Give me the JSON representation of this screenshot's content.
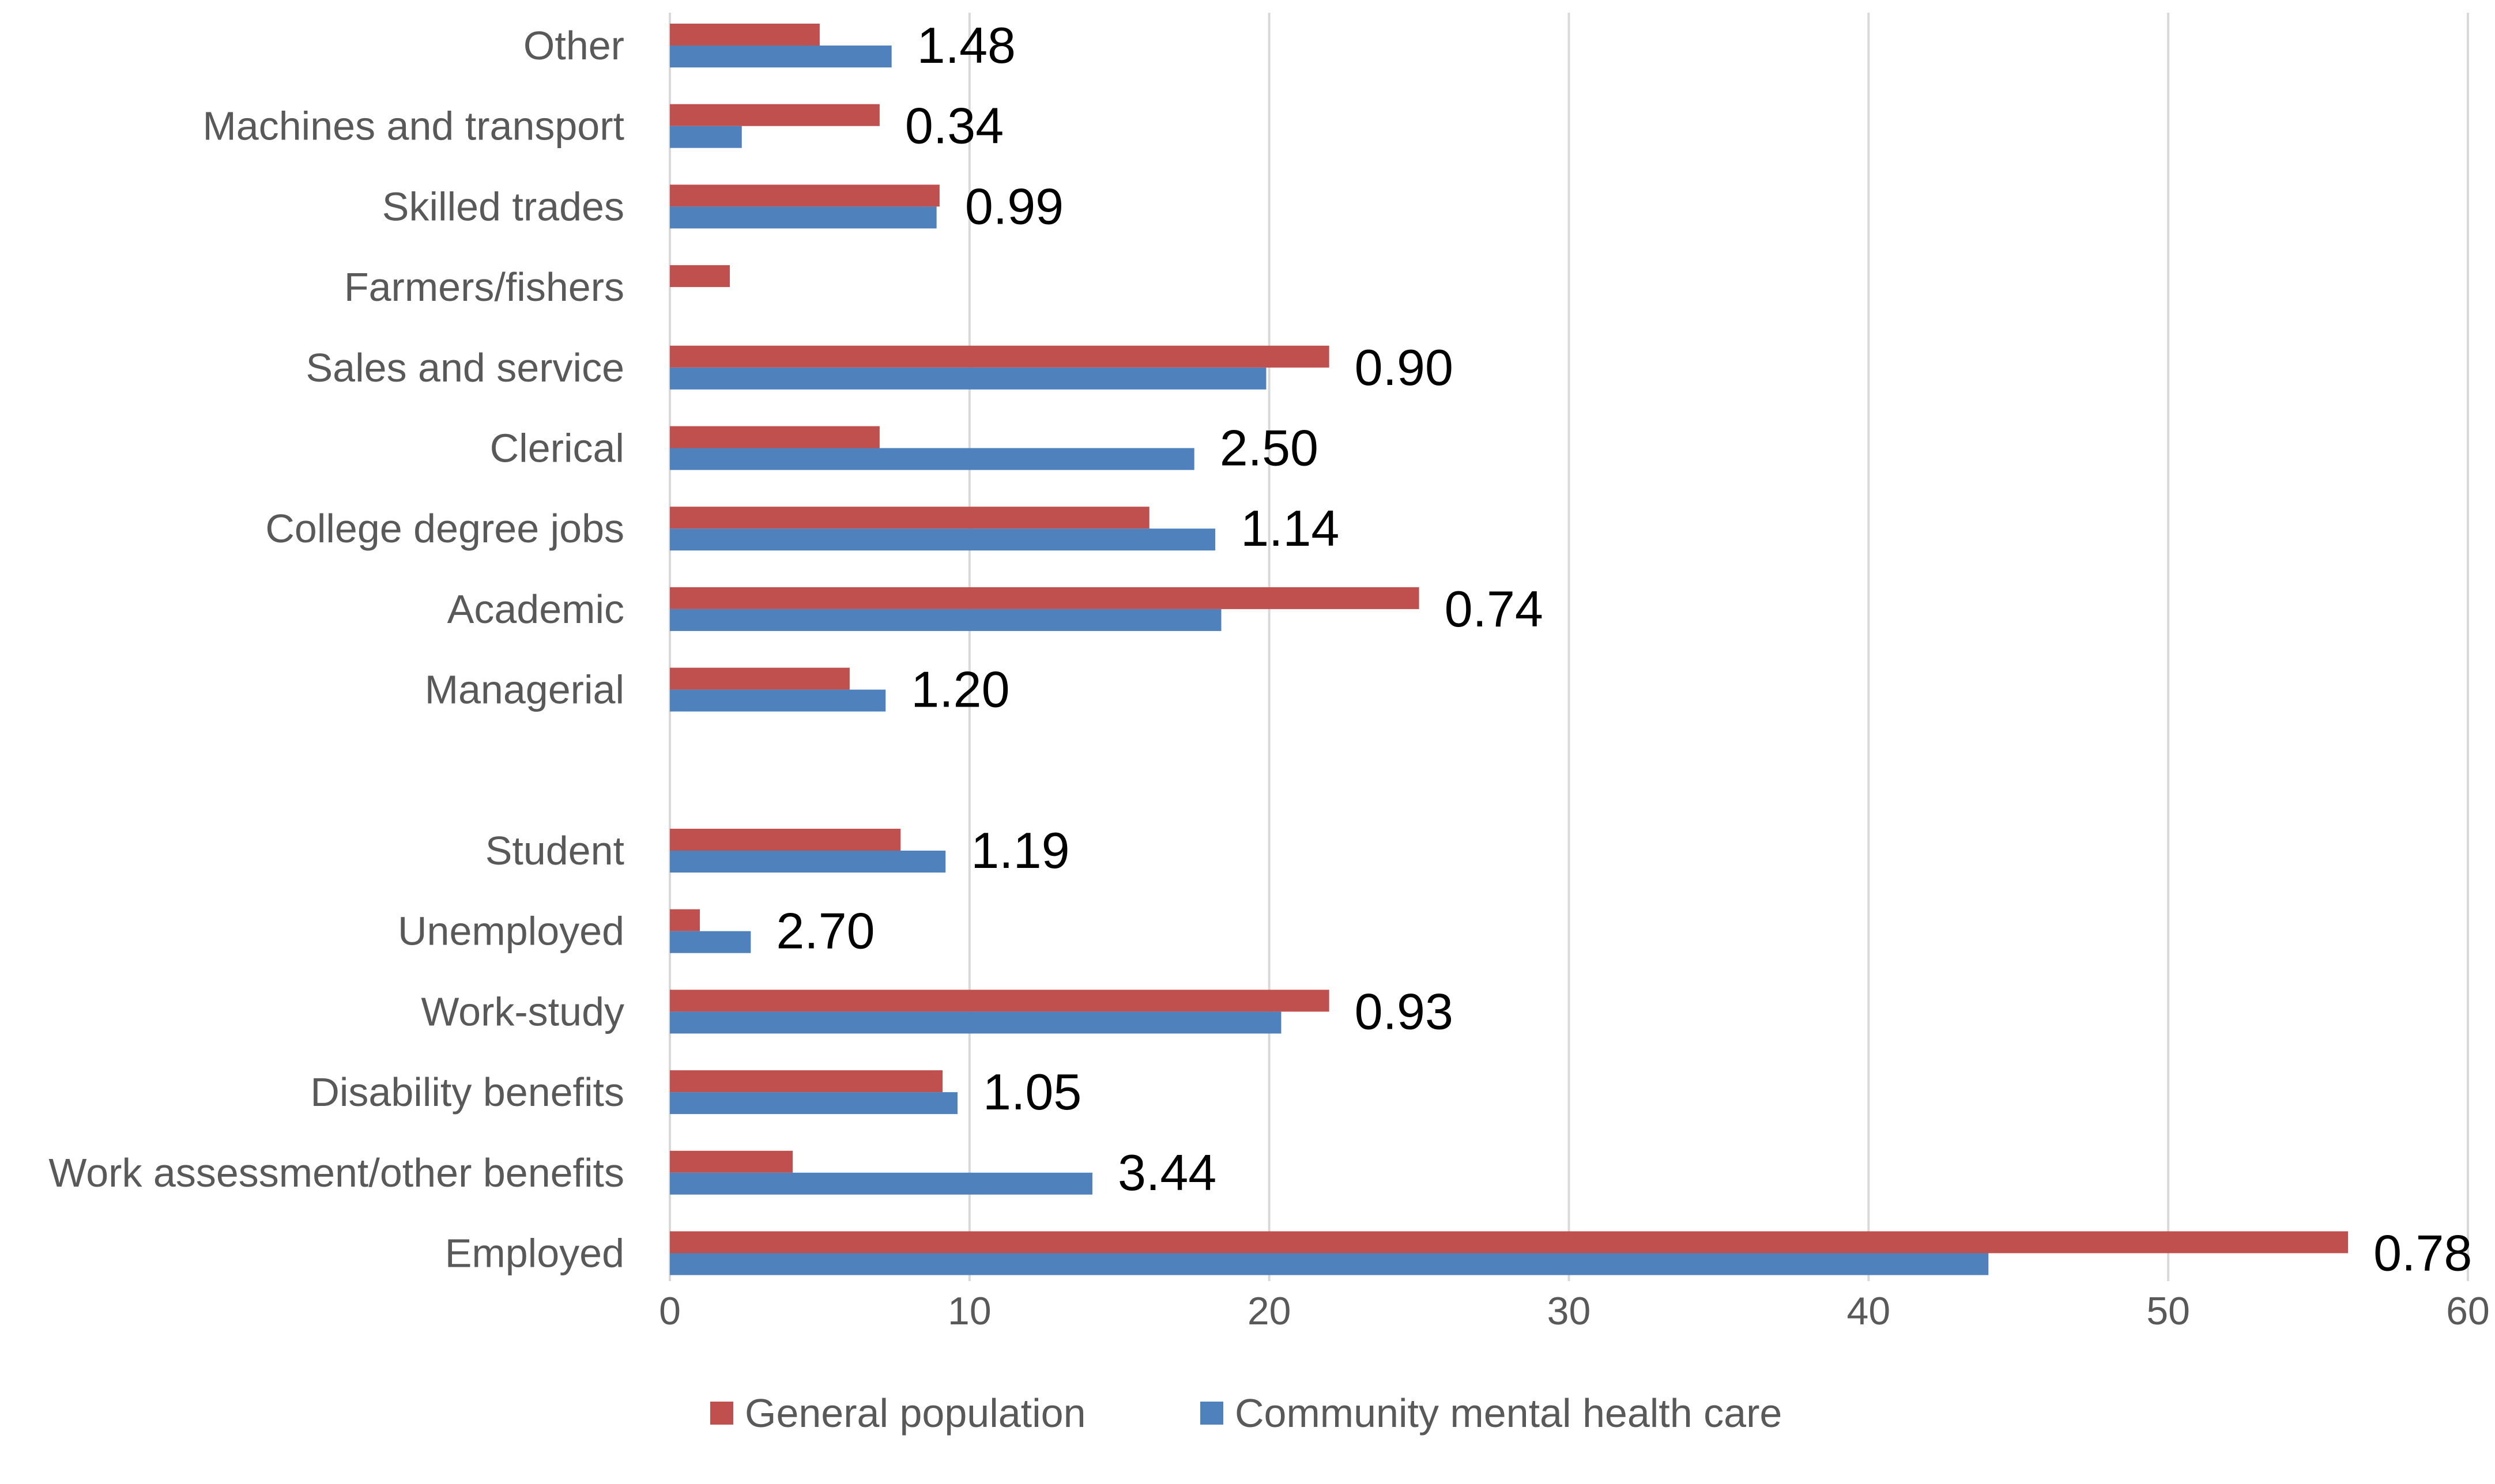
{
  "chart_data": {
    "type": "bar",
    "orientation": "horizontal",
    "title": "",
    "xlabel": "",
    "ylabel": "",
    "xlim": [
      0,
      60
    ],
    "x_ticks": [
      0,
      10,
      20,
      30,
      40,
      50,
      60
    ],
    "grid": true,
    "legend_position": "bottom",
    "categories": [
      "Other",
      "Machines and transport",
      "Skilled trades",
      "Farmers/fishers",
      "Sales and service",
      "Clerical",
      "College degree jobs",
      "Academic",
      "Managerial",
      "",
      "Student",
      "Unemployed",
      "Work-study",
      "Disability benefits",
      "Work assessment/other benefits",
      "Employed"
    ],
    "series": [
      {
        "name": "General population",
        "color": "#c0504d",
        "values": [
          5,
          7,
          9,
          2,
          22,
          7,
          16,
          25,
          6,
          null,
          7.7,
          1,
          22,
          9.1,
          4.1,
          56
        ]
      },
      {
        "name": "Community mental health care",
        "color": "#4f81bd",
        "values": [
          7.4,
          2.4,
          8.9,
          0,
          19.9,
          17.5,
          18.2,
          18.4,
          7.2,
          null,
          9.2,
          2.7,
          20.4,
          9.6,
          14.1,
          44
        ]
      }
    ],
    "annotations": [
      "1.48",
      "0.34",
      "0.99",
      "",
      "0.90",
      "2.50",
      "1.14",
      "0.74",
      "1.20",
      "",
      "1.19",
      "2.70",
      "0.93",
      "1.05",
      "3.44",
      "0.78"
    ]
  }
}
